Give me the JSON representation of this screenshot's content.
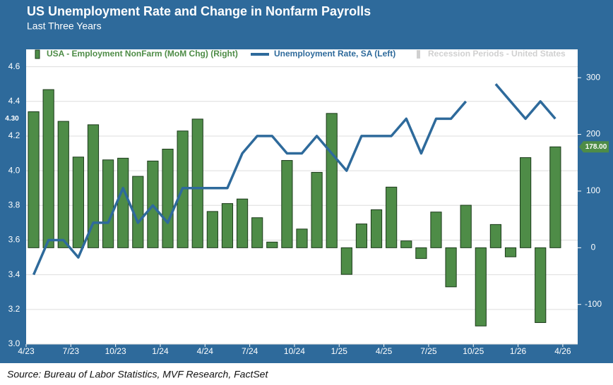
{
  "chart_data": {
    "type": "bar-line",
    "title": "US Unemployment Rate and Change in Nonfarm Payrolls",
    "subtitle": "Last Three Years",
    "source": "Source: Bureau of Labor Statistics, MVF Research, FactSet",
    "categories": [
      "4/23",
      null,
      null,
      "7/23",
      null,
      null,
      "10/23",
      null,
      null,
      "1/24",
      null,
      null,
      "4/24",
      null,
      null,
      "7/24",
      null,
      null,
      "10/24",
      null,
      null,
      "1/25",
      null,
      null,
      "4/25",
      null,
      null,
      "7/25",
      null,
      null,
      "10/25",
      null,
      null,
      "1/26",
      null,
      null,
      "4/26"
    ],
    "series": [
      {
        "name": "USA - Employment NonFarm (MoM Chg) (Right)",
        "type": "bar",
        "axis": "y2",
        "color": "#4e8c47",
        "values": [
          240,
          279,
          223,
          160,
          217,
          155,
          158,
          126,
          153,
          174,
          206,
          227,
          64,
          78,
          86,
          53,
          10,
          154,
          33,
          133,
          237,
          -47,
          42,
          67,
          107,
          12,
          -19,
          63,
          -69,
          75,
          -138,
          41,
          -16,
          159,
          -132,
          178,
          null
        ],
        "last_label": "178.00"
      },
      {
        "name": "Unemployment Rate, SA (Left)",
        "type": "line",
        "color": "#2e6a9b",
        "values": [
          3.4,
          3.6,
          3.6,
          3.5,
          3.7,
          3.7,
          3.9,
          3.7,
          3.8,
          3.7,
          3.9,
          3.9,
          3.9,
          3.9,
          4.1,
          4.2,
          4.2,
          4.1,
          4.1,
          4.2,
          4.1,
          4.0,
          4.2,
          4.2,
          4.2,
          4.3,
          4.1,
          4.3,
          4.3,
          4.4,
          null,
          4.5,
          4.4,
          4.3,
          4.4,
          4.3,
          null
        ],
        "last_label": "4.30"
      },
      {
        "name": "Recession Periods - United States",
        "type": "area",
        "color": "#d0d0d0",
        "values": [
          null,
          null,
          null,
          null,
          null,
          null,
          null,
          null,
          null,
          null,
          null,
          null,
          null,
          null,
          null,
          null,
          null,
          null,
          null,
          null,
          null,
          null,
          null,
          null,
          null,
          null,
          null,
          null,
          null,
          null,
          null,
          null,
          null,
          null,
          null,
          null,
          null
        ]
      }
    ],
    "ylim": [
      3.0,
      4.7
    ],
    "yticks": [
      {
        "value": 3,
        "label": "3.0"
      },
      3.2,
      3.4,
      3.6,
      3.8,
      {
        "value": 4,
        "label": "4.0"
      },
      4.2,
      4.4,
      4.6
    ],
    "y2lim": [
      -170,
      350
    ],
    "y2ticks": [
      -100,
      0,
      100,
      200,
      300
    ],
    "grid": true
  }
}
